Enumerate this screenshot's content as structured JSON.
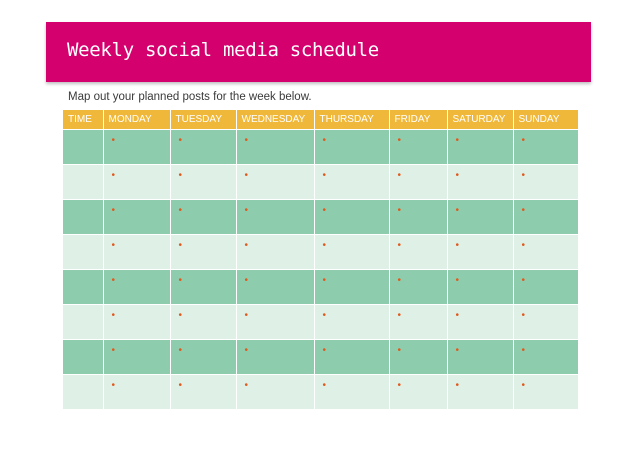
{
  "header": {
    "title": "Weekly social media schedule",
    "subtitle": "Map out your planned posts for the week below."
  },
  "table": {
    "columns": [
      "TIME",
      "MONDAY",
      "TUESDAY",
      "WEDNESDAY",
      "THURSDAY",
      "FRIDAY",
      "SATURDAY",
      "SUNDAY"
    ],
    "row_count": 8,
    "bullet_glyph": "•"
  },
  "colors": {
    "banner": "#d4006e",
    "header_row": "#f0b83a",
    "row_dark": "#8dcdae",
    "row_light": "#dff1e7",
    "bullet": "#e05a1e"
  }
}
